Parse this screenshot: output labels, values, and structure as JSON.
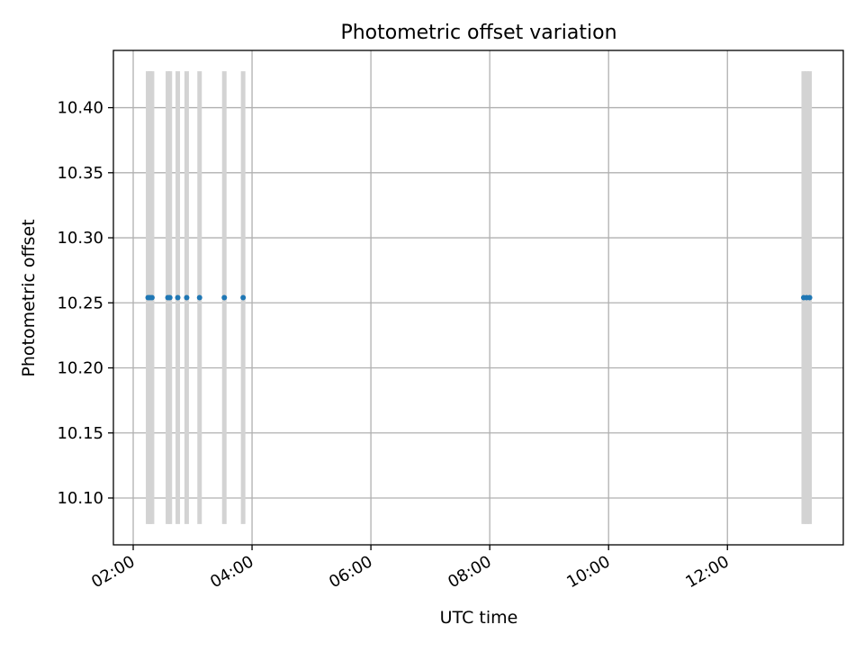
{
  "chart_data": {
    "type": "scatter",
    "title": "Photometric offset variation",
    "xlabel": "UTC time",
    "ylabel": "Photometric offset",
    "x_tick_labels": [
      "02:00",
      "04:00",
      "06:00",
      "08:00",
      "10:00",
      "12:00"
    ],
    "y_tick_labels": [
      "10.10",
      "10.15",
      "10.20",
      "10.25",
      "10.30",
      "10.35",
      "10.40"
    ],
    "xlim": [
      "01:40",
      "13:57"
    ],
    "ylim": [
      10.064,
      10.444
    ],
    "grid": true,
    "error_bars": {
      "color": "#d3d3d3",
      "low": 10.08,
      "high": 10.428
    },
    "series": [
      {
        "color": "#1f77b4",
        "x": [
          "02:15",
          "02:17",
          "02:19",
          "02:35",
          "02:37",
          "02:45",
          "02:54",
          "03:07",
          "03:32",
          "03:51",
          "13:17",
          "13:20",
          "13:23"
        ],
        "y": [
          10.254,
          10.254,
          10.254,
          10.254,
          10.254,
          10.254,
          10.254,
          10.254,
          10.254,
          10.254,
          10.254,
          10.254,
          10.254
        ]
      }
    ]
  }
}
